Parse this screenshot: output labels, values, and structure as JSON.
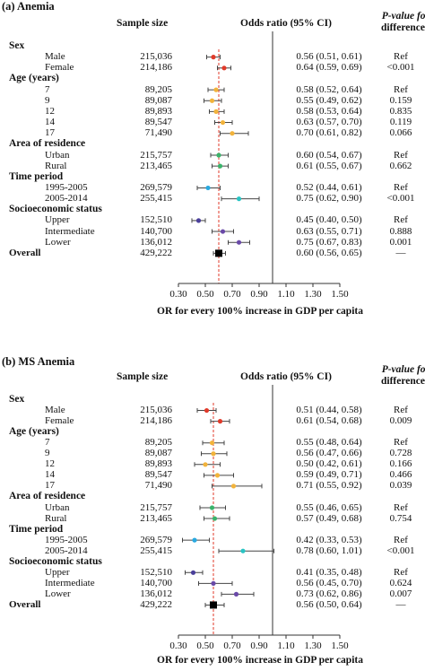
{
  "chart_data": [
    {
      "type": "forest",
      "title": "(a) Anemia",
      "headers": {
        "sample_size": "Sample size",
        "odds_ratio": "Odds ratio (95% CI)",
        "p_value_line1": "P-value for",
        "p_value_line2": "difference*"
      },
      "xlabel": "OR for every 100% increase in GDP per capita",
      "xlim": [
        0.3,
        1.5
      ],
      "xticks": [
        "0.30",
        "0.50",
        "0.70",
        "0.90",
        "1.10",
        "1.30",
        "1.50"
      ],
      "reference_line": 1.0,
      "overall_line": 0.6,
      "rows": [
        {
          "kind": "group",
          "label": "Sex"
        },
        {
          "kind": "item",
          "label": "Male",
          "n": "215,036",
          "or": 0.56,
          "lo": 0.51,
          "hi": 0.61,
          "ci_text": "0.56 (0.51, 0.61)",
          "p": "Ref",
          "color": "#e03a2a"
        },
        {
          "kind": "item",
          "label": "Female",
          "n": "214,186",
          "or": 0.64,
          "lo": 0.59,
          "hi": 0.69,
          "ci_text": "0.64 (0.59, 0.69)",
          "p": "<0.001",
          "color": "#e03a2a"
        },
        {
          "kind": "group",
          "label": "Age (years)"
        },
        {
          "kind": "item",
          "label": "7",
          "n": "89,205",
          "or": 0.58,
          "lo": 0.52,
          "hi": 0.64,
          "ci_text": "0.58 (0.52, 0.64)",
          "p": "Ref",
          "color": "#f2b33b"
        },
        {
          "kind": "item",
          "label": "9",
          "n": "89,087",
          "or": 0.55,
          "lo": 0.49,
          "hi": 0.62,
          "ci_text": "0.55 (0.49, 0.62)",
          "p": "0.159",
          "color": "#f2b33b"
        },
        {
          "kind": "item",
          "label": "12",
          "n": "89,893",
          "or": 0.58,
          "lo": 0.53,
          "hi": 0.64,
          "ci_text": "0.58 (0.53, 0.64)",
          "p": "0.835",
          "color": "#f2b33b"
        },
        {
          "kind": "item",
          "label": "14",
          "n": "89,547",
          "or": 0.63,
          "lo": 0.57,
          "hi": 0.7,
          "ci_text": "0.63 (0.57, 0.70)",
          "p": "0.119",
          "color": "#f2b33b"
        },
        {
          "kind": "item",
          "label": "17",
          "n": "71,490",
          "or": 0.7,
          "lo": 0.61,
          "hi": 0.82,
          "ci_text": "0.70 (0.61, 0.82)",
          "p": "0.066",
          "color": "#f2b33b"
        },
        {
          "kind": "group",
          "label": "Area of residence"
        },
        {
          "kind": "item",
          "label": "Urban",
          "n": "215,757",
          "or": 0.6,
          "lo": 0.54,
          "hi": 0.67,
          "ci_text": "0.60 (0.54, 0.67)",
          "p": "Ref",
          "color": "#3bb36b"
        },
        {
          "kind": "item",
          "label": "Rural",
          "n": "213,465",
          "or": 0.61,
          "lo": 0.55,
          "hi": 0.67,
          "ci_text": "0.61 (0.55, 0.67)",
          "p": "0.662",
          "color": "#3bb36b"
        },
        {
          "kind": "group",
          "label": "Time period"
        },
        {
          "kind": "item",
          "label": "1995-2005",
          "n": "269,579",
          "or": 0.52,
          "lo": 0.44,
          "hi": 0.61,
          "ci_text": "0.52 (0.44, 0.61)",
          "p": "Ref",
          "color": "#29a9e0"
        },
        {
          "kind": "item",
          "label": "2005-2014",
          "n": "255,415",
          "or": 0.75,
          "lo": 0.62,
          "hi": 0.9,
          "ci_text": "0.75 (0.62, 0.90)",
          "p": "<0.001",
          "color": "#29c4c4"
        },
        {
          "kind": "group",
          "label": "Socioeconomic status"
        },
        {
          "kind": "item",
          "label": "Upper",
          "n": "152,510",
          "or": 0.45,
          "lo": 0.4,
          "hi": 0.5,
          "ci_text": "0.45 (0.40, 0.50)",
          "p": "Ref",
          "color": "#4a3f9a"
        },
        {
          "kind": "item",
          "label": "Intermediate",
          "n": "140,700",
          "or": 0.63,
          "lo": 0.55,
          "hi": 0.71,
          "ci_text": "0.63 (0.55, 0.71)",
          "p": "0.888",
          "color": "#6a4aa8"
        },
        {
          "kind": "item",
          "label": "Lower",
          "n": "136,012",
          "or": 0.75,
          "lo": 0.67,
          "hi": 0.83,
          "ci_text": "0.75 (0.67, 0.83)",
          "p": "0.001",
          "color": "#6a4aa8"
        },
        {
          "kind": "overall",
          "label": "Overall",
          "n": "429,222",
          "or": 0.6,
          "lo": 0.56,
          "hi": 0.65,
          "ci_text": "0.60 (0.56, 0.65)",
          "p": "—",
          "color": "#000000"
        }
      ]
    },
    {
      "type": "forest",
      "title": "(b) MS Anemia",
      "headers": {
        "sample_size": "Sample size",
        "odds_ratio": "Odds ratio (95% CI)",
        "p_value_line1": "P-value for",
        "p_value_line2": "difference*"
      },
      "xlabel": "OR for every 100% increase in GDP per capita",
      "xlim": [
        0.3,
        1.5
      ],
      "xticks": [
        "0.30",
        "0.50",
        "0.70",
        "0.90",
        "1.10",
        "1.30",
        "1.50"
      ],
      "reference_line": 1.0,
      "overall_line": 0.56,
      "rows": [
        {
          "kind": "group",
          "label": "Sex"
        },
        {
          "kind": "item",
          "label": "Male",
          "n": "215,036",
          "or": 0.51,
          "lo": 0.44,
          "hi": 0.58,
          "ci_text": "0.51 (0.44, 0.58)",
          "p": "Ref",
          "color": "#e03a2a"
        },
        {
          "kind": "item",
          "label": "Female",
          "n": "214,186",
          "or": 0.61,
          "lo": 0.54,
          "hi": 0.68,
          "ci_text": "0.61 (0.54, 0.68)",
          "p": "0.009",
          "color": "#e03a2a"
        },
        {
          "kind": "group",
          "label": "Age (years)"
        },
        {
          "kind": "item",
          "label": "7",
          "n": "89,205",
          "or": 0.55,
          "lo": 0.48,
          "hi": 0.64,
          "ci_text": "0.55 (0.48, 0.64)",
          "p": "Ref",
          "color": "#f2b33b"
        },
        {
          "kind": "item",
          "label": "9",
          "n": "89,087",
          "or": 0.56,
          "lo": 0.47,
          "hi": 0.66,
          "ci_text": "0.56 (0.47, 0.66)",
          "p": "0.728",
          "color": "#f2b33b"
        },
        {
          "kind": "item",
          "label": "12",
          "n": "89,893",
          "or": 0.5,
          "lo": 0.42,
          "hi": 0.61,
          "ci_text": "0.50 (0.42, 0.61)",
          "p": "0.166",
          "color": "#f2b33b"
        },
        {
          "kind": "item",
          "label": "14",
          "n": "89,547",
          "or": 0.59,
          "lo": 0.49,
          "hi": 0.71,
          "ci_text": "0.59 (0.49, 0.71)",
          "p": "0.466",
          "color": "#f2b33b"
        },
        {
          "kind": "item",
          "label": "17",
          "n": "71,490",
          "or": 0.71,
          "lo": 0.55,
          "hi": 0.92,
          "ci_text": "0.71 (0.55, 0.92)",
          "p": "0.039",
          "color": "#f2b33b"
        },
        {
          "kind": "group",
          "label": "Area of residence"
        },
        {
          "kind": "item",
          "label": "Urban",
          "n": "215,757",
          "or": 0.55,
          "lo": 0.46,
          "hi": 0.65,
          "ci_text": "0.55 (0.46, 0.65)",
          "p": "Ref",
          "color": "#3bb36b"
        },
        {
          "kind": "item",
          "label": "Rural",
          "n": "213,465",
          "or": 0.57,
          "lo": 0.49,
          "hi": 0.68,
          "ci_text": "0.57 (0.49, 0.68)",
          "p": "0.754",
          "color": "#3bb36b"
        },
        {
          "kind": "group",
          "label": "Time period"
        },
        {
          "kind": "item",
          "label": "1995-2005",
          "n": "269,579",
          "or": 0.42,
          "lo": 0.33,
          "hi": 0.53,
          "ci_text": "0.42 (0.33, 0.53)",
          "p": "Ref",
          "color": "#29a9e0"
        },
        {
          "kind": "item",
          "label": "2005-2014",
          "n": "255,415",
          "or": 0.78,
          "lo": 0.6,
          "hi": 1.01,
          "ci_text": "0.78 (0.60, 1.01)",
          "p": "<0.001",
          "color": "#29c4c4"
        },
        {
          "kind": "group",
          "label": "Socioeconomic status"
        },
        {
          "kind": "item",
          "label": "Upper",
          "n": "152,510",
          "or": 0.41,
          "lo": 0.35,
          "hi": 0.48,
          "ci_text": "0.41 (0.35, 0.48)",
          "p": "Ref",
          "color": "#4a3f9a"
        },
        {
          "kind": "item",
          "label": "Intermediate",
          "n": "140,700",
          "or": 0.56,
          "lo": 0.45,
          "hi": 0.7,
          "ci_text": "0.56 (0.45, 0.70)",
          "p": "0.624",
          "color": "#6a4aa8"
        },
        {
          "kind": "item",
          "label": "Lower",
          "n": "136,012",
          "or": 0.73,
          "lo": 0.62,
          "hi": 0.86,
          "ci_text": "0.73 (0.62, 0.86)",
          "p": "0.007",
          "color": "#6a4aa8"
        },
        {
          "kind": "overall",
          "label": "Overall",
          "n": "429,222",
          "or": 0.56,
          "lo": 0.5,
          "hi": 0.64,
          "ci_text": "0.56 (0.50, 0.64)",
          "p": "—",
          "color": "#000000"
        }
      ]
    }
  ]
}
